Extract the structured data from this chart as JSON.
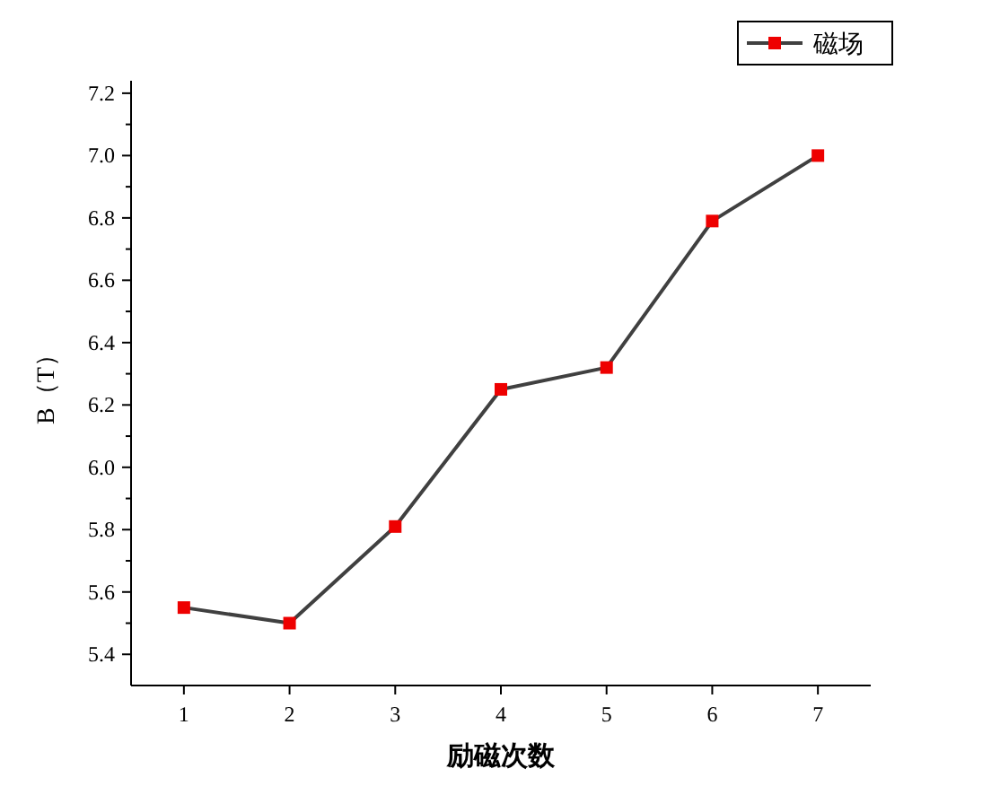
{
  "chart_data": {
    "type": "line",
    "xlabel": "励磁次数",
    "ylabel": "B（T）",
    "x": [
      1,
      2,
      3,
      4,
      5,
      6,
      7
    ],
    "xlim": [
      0.5,
      7.5
    ],
    "xticks": [
      1,
      2,
      3,
      4,
      5,
      6,
      7
    ],
    "ylim": [
      5.3,
      7.24
    ],
    "yticks": [
      {
        "value": 5.4,
        "label": "5.4"
      },
      {
        "value": 5.6,
        "label": "5.6"
      },
      {
        "value": 5.8,
        "label": "5.8"
      },
      {
        "value": 6.0,
        "label": "6.0"
      },
      {
        "value": 6.2,
        "label": "6.2"
      },
      {
        "value": 6.4,
        "label": "6.4"
      },
      {
        "value": 6.6,
        "label": "6.6"
      },
      {
        "value": 6.8,
        "label": "6.8"
      },
      {
        "value": 7.0,
        "label": "7.0"
      },
      {
        "value": 7.2,
        "label": "7.2"
      }
    ],
    "series": [
      {
        "name": "磁场",
        "color": "#404040",
        "colors": [
          "#ee0000",
          "#ee0000",
          "#ee0000",
          "#ee0000",
          "#ee0000",
          "#ee0000",
          "#ee0000"
        ],
        "values": [
          5.55,
          5.5,
          5.81,
          6.25,
          6.32,
          6.79,
          7.0
        ]
      }
    ],
    "legend": "top right",
    "marker": "square",
    "line_style": "solid",
    "grid": false
  }
}
